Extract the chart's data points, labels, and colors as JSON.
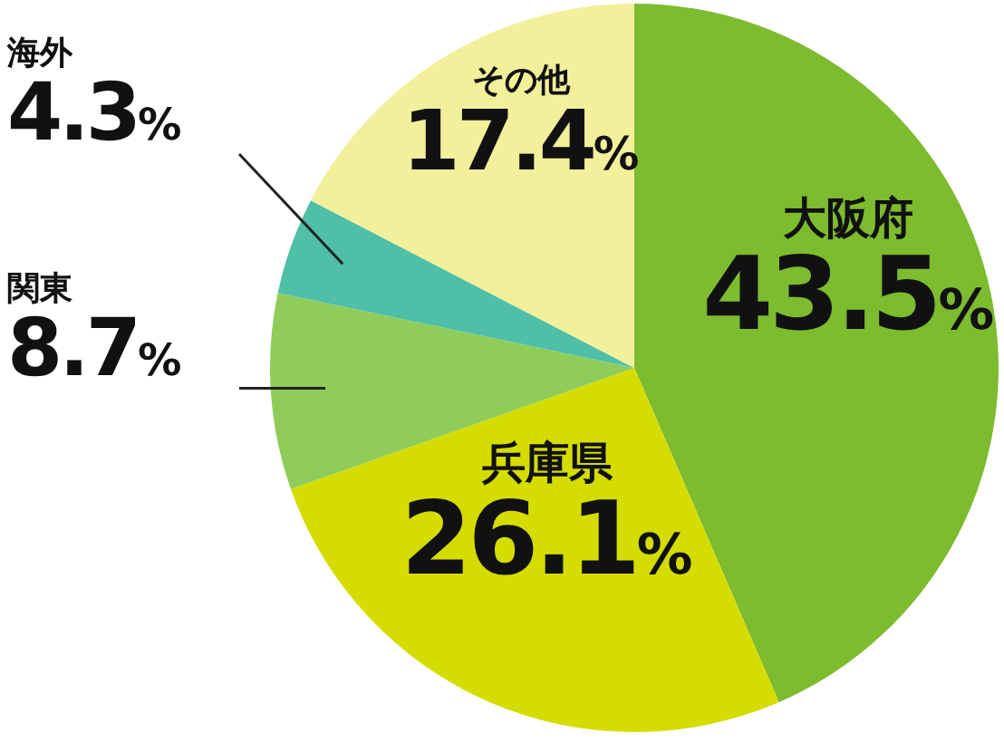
{
  "chart_data": {
    "type": "pie",
    "categories": [
      "大阪府",
      "兵庫県",
      "関東",
      "海外",
      "その他"
    ],
    "values": [
      43.5,
      26.1,
      8.7,
      4.3,
      17.4
    ],
    "colors": [
      "#7dbb2f",
      "#d4dc00",
      "#8fcc5a",
      "#4fbfa8",
      "#f2f09a"
    ],
    "value_labels": [
      "43.5%",
      "26.1%",
      "8.7%",
      "4.3%",
      "17.4%"
    ],
    "legend": false
  }
}
